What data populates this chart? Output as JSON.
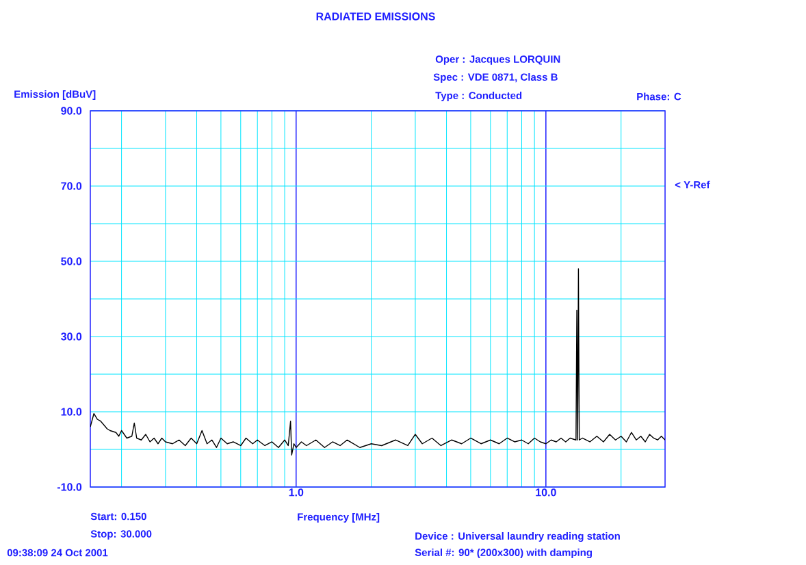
{
  "chart_data": {
    "type": "line",
    "title": "RADIATED EMISSIONS",
    "xlabel": "Frequency [MHz]",
    "ylabel": "Emission [dBuV]",
    "annotations": [
      "Oper : Jacques LORQUIN",
      "Spec : VDE 0871, Class B",
      "Type : Conducted",
      "Phase: C",
      "Start: 0.150",
      "Stop: 30.000",
      "09:38:09 24 Oct 2001",
      "Device : Universal laundry reading station",
      "Serial #: 90* (200x300) with damping",
      "< Y-Ref"
    ],
    "log": "x",
    "xlim": [
      0.15,
      30
    ],
    "ylim": [
      -10,
      90
    ],
    "xticks": [
      {
        "value": 0.2,
        "label": null
      },
      {
        "value": 0.3,
        "label": null
      },
      {
        "value": 0.4,
        "label": null
      },
      {
        "value": 0.5,
        "label": null
      },
      {
        "value": 0.6,
        "label": null
      },
      {
        "value": 0.7,
        "label": null
      },
      {
        "value": 0.8,
        "label": null
      },
      {
        "value": 0.9,
        "label": null
      },
      {
        "value": 1,
        "label": "1.0"
      },
      {
        "value": 2,
        "label": null
      },
      {
        "value": 3,
        "label": null
      },
      {
        "value": 4,
        "label": null
      },
      {
        "value": 5,
        "label": null
      },
      {
        "value": 6,
        "label": null
      },
      {
        "value": 7,
        "label": null
      },
      {
        "value": 8,
        "label": null
      },
      {
        "value": 9,
        "label": null
      },
      {
        "value": 10,
        "label": "10.0"
      },
      {
        "value": 20,
        "label": null
      }
    ],
    "yticks": [
      {
        "value": -10,
        "label": "-10.0"
      },
      {
        "value": 0,
        "label": null
      },
      {
        "value": 10,
        "label": "10.0"
      },
      {
        "value": 20,
        "label": null
      },
      {
        "value": 30,
        "label": "30.0"
      },
      {
        "value": 40,
        "label": null
      },
      {
        "value": 50,
        "label": "50.0"
      },
      {
        "value": 60,
        "label": null
      },
      {
        "value": 70,
        "label": "70.0"
      },
      {
        "value": 80,
        "label": null
      },
      {
        "value": 90,
        "label": "90.0"
      }
    ],
    "grid": true,
    "x": [
      0.15,
      0.155,
      0.16,
      0.165,
      0.17,
      0.175,
      0.18,
      0.19,
      0.195,
      0.2,
      0.205,
      0.21,
      0.22,
      0.225,
      0.23,
      0.24,
      0.25,
      0.26,
      0.27,
      0.28,
      0.29,
      0.3,
      0.32,
      0.34,
      0.36,
      0.38,
      0.4,
      0.42,
      0.44,
      0.46,
      0.48,
      0.5,
      0.53,
      0.56,
      0.6,
      0.63,
      0.67,
      0.7,
      0.75,
      0.8,
      0.85,
      0.9,
      0.93,
      0.95,
      0.96,
      0.98,
      1.0,
      1.05,
      1.1,
      1.2,
      1.3,
      1.4,
      1.5,
      1.6,
      1.8,
      2.0,
      2.2,
      2.5,
      2.8,
      3.0,
      3.2,
      3.5,
      3.8,
      4.2,
      4.6,
      5.0,
      5.5,
      6.0,
      6.5,
      7.0,
      7.5,
      8.0,
      8.5,
      9.0,
      9.5,
      10,
      10.5,
      11,
      11.5,
      12,
      12.5,
      13.2,
      13.3,
      13.4,
      13.5,
      13.6,
      14,
      15,
      16,
      17,
      18,
      19,
      20,
      21,
      22,
      23,
      24,
      25,
      26,
      27,
      28,
      29,
      30
    ],
    "series": [
      {
        "color": "#000000",
        "values": [
          6,
          9.5,
          8,
          7.5,
          6.5,
          5.5,
          5,
          4.5,
          3.5,
          5,
          4,
          3,
          3.5,
          7,
          3,
          2.5,
          4,
          2,
          3,
          1.5,
          3,
          2,
          1.5,
          2.5,
          1,
          3,
          1.5,
          5,
          1.5,
          2.5,
          0.5,
          3,
          1.5,
          2,
          1,
          3,
          1.5,
          2.5,
          1,
          2,
          0.5,
          2.5,
          1,
          7.5,
          -1.5,
          1.5,
          0.5,
          2,
          1,
          2.5,
          0.5,
          2,
          1,
          2.5,
          0.5,
          1.5,
          1,
          2.5,
          1,
          4,
          1.5,
          3,
          1,
          2.5,
          1.5,
          3,
          1.5,
          2.5,
          1.5,
          3,
          2,
          2.5,
          1.5,
          3,
          2,
          1.5,
          2.5,
          2,
          3,
          2,
          3,
          2.5,
          37,
          2.5,
          48,
          2.5,
          3,
          2,
          3.5,
          2,
          4,
          2.5,
          3.5,
          2,
          4.5,
          2.5,
          3.5,
          2,
          4,
          3,
          2.5,
          3.5,
          2.5
        ]
      }
    ]
  }
}
